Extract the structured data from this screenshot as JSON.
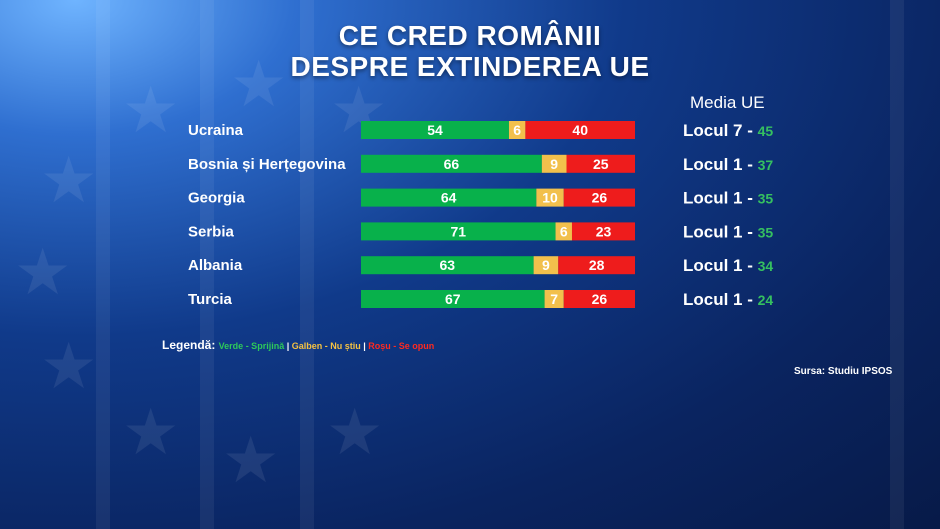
{
  "title": {
    "line1": "CE CRED ROMÂNII",
    "line2": "DESPRE EXTINDEREA UE"
  },
  "media_header": "Media UE",
  "colors": {
    "green": "#08b14b",
    "yellow": "#f2c04c",
    "red": "#ee1c1c",
    "rank_value": "#35c060"
  },
  "chart_data": {
    "type": "bar",
    "stacked": true,
    "horizontal": true,
    "categories": [
      "Ucraina",
      "Bosnia și Herțegovina",
      "Georgia",
      "Serbia",
      "Albania",
      "Turcia"
    ],
    "series": [
      {
        "name": "Sprijină",
        "values": [
          54,
          66,
          64,
          71,
          63,
          67
        ]
      },
      {
        "name": "Nu știu",
        "values": [
          6,
          9,
          10,
          6,
          9,
          7
        ]
      },
      {
        "name": "Se opun",
        "values": [
          40,
          25,
          26,
          23,
          28,
          26
        ]
      }
    ],
    "ranks": [
      {
        "label": "Locul 7 - ",
        "value": "45"
      },
      {
        "label": "Locul 1 - ",
        "value": "37"
      },
      {
        "label": "Locul 1 - ",
        "value": "35"
      },
      {
        "label": "Locul 1 - ",
        "value": "35"
      },
      {
        "label": "Locul 1 - ",
        "value": "34"
      },
      {
        "label": "Locul 1 - ",
        "value": "24"
      }
    ],
    "xlim": [
      0,
      100
    ]
  },
  "legend": {
    "title": "Legendă: ",
    "green": "Verde - Sprijină",
    "yellow": "Galben - Nu știu",
    "red": "Roșu - Se opun",
    "sep": " | "
  },
  "source": "Sursa: Studiu IPSOS"
}
